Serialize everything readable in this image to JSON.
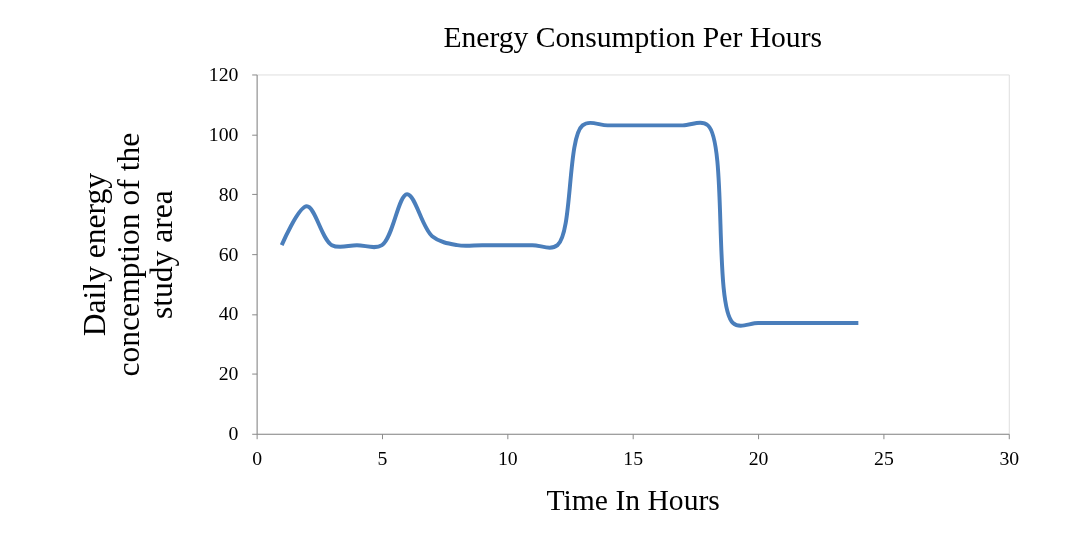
{
  "chart_data": {
    "type": "line",
    "title": "Energy Consumption Per Hours",
    "xlabel": "Time In Hours",
    "ylabel": "Daily energy concemption of the study area",
    "x": [
      1,
      2,
      3,
      4,
      5,
      6,
      7,
      8,
      9,
      10,
      11,
      12,
      13,
      14,
      15,
      16,
      17,
      18,
      19,
      20,
      21,
      22,
      23,
      24
    ],
    "series": [
      {
        "color": "#4a7ebb",
        "values": [
          63,
          76,
          63,
          63,
          63,
          80,
          66,
          63,
          63,
          63,
          63,
          63,
          103,
          103,
          103,
          103,
          103,
          103,
          37,
          37,
          37,
          37,
          37,
          37
        ]
      }
    ],
    "xlim": [
      0,
      30
    ],
    "xticks": [
      0,
      5,
      10,
      15,
      20,
      25,
      30
    ],
    "ylim": [
      0,
      120
    ],
    "yticks": [
      0,
      20,
      40,
      60,
      80,
      100,
      120
    ],
    "grid": false,
    "marker": "none",
    "line_style": "solid"
  }
}
